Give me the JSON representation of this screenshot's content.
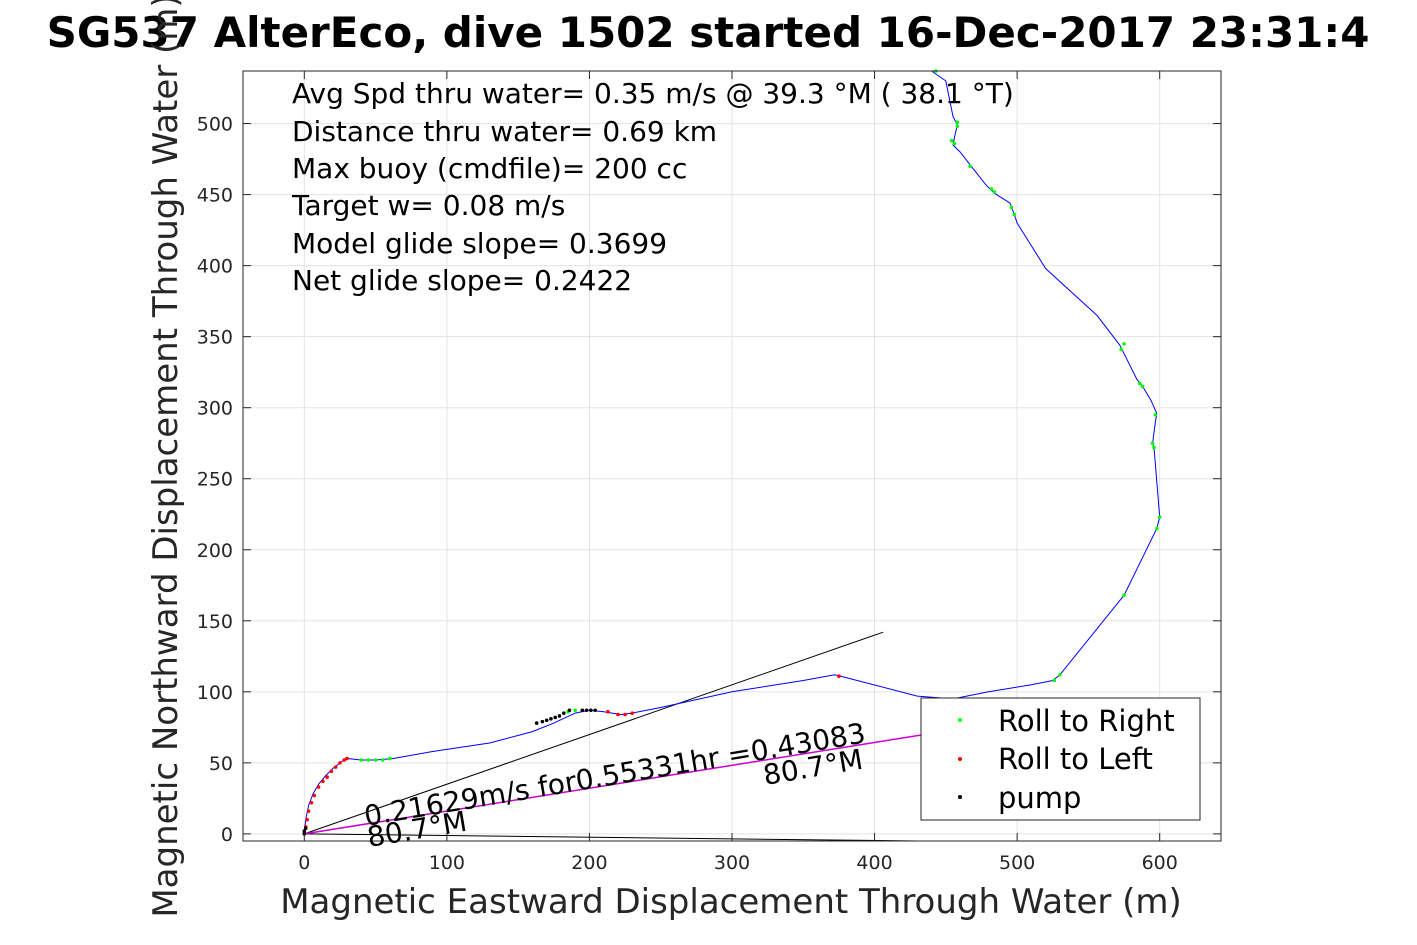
{
  "chart_data": {
    "type": "scatter",
    "title": "SG537 AlterEco, dive 1502 started 16-Dec-2017 23:31:4",
    "xlabel": "Magnetic Eastward Displacement Through Water (m)",
    "ylabel": "Magnetic Northward Displacement Through Water (m)",
    "xlim": [
      -43,
      643
    ],
    "ylim": [
      -5,
      537
    ],
    "xticks": [
      0,
      100,
      200,
      300,
      400,
      500,
      600
    ],
    "yticks": [
      0,
      50,
      100,
      150,
      200,
      250,
      300,
      350,
      400,
      450,
      500
    ],
    "grid": true,
    "annotations": [
      "Avg Spd thru water=  0.35 m/s @  39.3 °M ( 38.1 °T)",
      "Distance thru water=  0.69 km",
      "Max buoy (cmdfile)= 200 cc",
      "Target w= 0.08 m/s",
      "Model glide slope= 0.3699",
      "Net glide slope= 0.2422"
    ],
    "current_label": "0.21629m/s for0.55331hr =0.43083",
    "heading_labels": [
      "80.7°M",
      "80.7°M"
    ],
    "track": [
      [
        0,
        0
      ],
      [
        1,
        10
      ],
      [
        3,
        20
      ],
      [
        6,
        28
      ],
      [
        10,
        35
      ],
      [
        15,
        41
      ],
      [
        20,
        46
      ],
      [
        25,
        50
      ],
      [
        29,
        53
      ],
      [
        31,
        53
      ],
      [
        40,
        52
      ],
      [
        50,
        52
      ],
      [
        62,
        53
      ],
      [
        90,
        58
      ],
      [
        130,
        64
      ],
      [
        160,
        72
      ],
      [
        175,
        78
      ],
      [
        190,
        85
      ],
      [
        200,
        87
      ],
      [
        210,
        86
      ],
      [
        222,
        84
      ],
      [
        230,
        85
      ],
      [
        250,
        89
      ],
      [
        300,
        100
      ],
      [
        350,
        108
      ],
      [
        372,
        112
      ],
      [
        380,
        110
      ],
      [
        430,
        97
      ],
      [
        455,
        95
      ],
      [
        480,
        100
      ],
      [
        510,
        105
      ],
      [
        525,
        108
      ],
      [
        530,
        112
      ],
      [
        575,
        168
      ],
      [
        598,
        215
      ],
      [
        600,
        223
      ],
      [
        596,
        272
      ],
      [
        595,
        275
      ],
      [
        597,
        290
      ],
      [
        598,
        296
      ],
      [
        594,
        305
      ],
      [
        588,
        315
      ],
      [
        584,
        320
      ],
      [
        575,
        338
      ],
      [
        572,
        344
      ],
      [
        556,
        365
      ],
      [
        520,
        398
      ],
      [
        500,
        430
      ],
      [
        498,
        436
      ],
      [
        495,
        444
      ],
      [
        484,
        451
      ],
      [
        478,
        457
      ],
      [
        467,
        471
      ],
      [
        460,
        480
      ],
      [
        455,
        485
      ],
      [
        456,
        490
      ],
      [
        458,
        499
      ],
      [
        455,
        505
      ],
      [
        450,
        530
      ],
      [
        440,
        537
      ]
    ],
    "series": [
      {
        "name": "Roll to Right",
        "color": "#00ff00",
        "points": [
          [
            40,
            52
          ],
          [
            45,
            52
          ],
          [
            50,
            52
          ],
          [
            55,
            52
          ],
          [
            60,
            53
          ],
          [
            185,
            86
          ],
          [
            190,
            87
          ],
          [
            526,
            108
          ],
          [
            530,
            112
          ],
          [
            575,
            168
          ],
          [
            598,
            215
          ],
          [
            600,
            223
          ],
          [
            596,
            272
          ],
          [
            595,
            275
          ],
          [
            597,
            295
          ],
          [
            586,
            317
          ],
          [
            588,
            315
          ],
          [
            573,
            341
          ],
          [
            575,
            345
          ],
          [
            498,
            436
          ],
          [
            496,
            441
          ],
          [
            484,
            452
          ],
          [
            482,
            454
          ],
          [
            467,
            470
          ],
          [
            456,
            486
          ],
          [
            454,
            488
          ],
          [
            458,
            498
          ],
          [
            458,
            501
          ],
          [
            443,
            537
          ]
        ]
      },
      {
        "name": "Roll to Left",
        "color": "#ff0000",
        "points": [
          [
            0,
            1
          ],
          [
            1,
            5
          ],
          [
            2,
            10
          ],
          [
            3,
            16
          ],
          [
            5,
            22
          ],
          [
            7,
            27
          ],
          [
            10,
            33
          ],
          [
            13,
            37
          ],
          [
            16,
            40
          ],
          [
            19,
            44
          ],
          [
            22,
            47
          ],
          [
            25,
            50
          ],
          [
            28,
            52
          ],
          [
            30,
            53
          ],
          [
            213,
            86
          ],
          [
            220,
            84
          ],
          [
            225,
            84
          ],
          [
            230,
            85
          ],
          [
            375,
            111
          ]
        ]
      },
      {
        "name": "pump",
        "color": "#000000",
        "points": [
          [
            0,
            0
          ],
          [
            0,
            2
          ],
          [
            1,
            4
          ],
          [
            163,
            78
          ],
          [
            167,
            79
          ],
          [
            170,
            80
          ],
          [
            173,
            81
          ],
          [
            176,
            82
          ],
          [
            179,
            83
          ],
          [
            182,
            85
          ],
          [
            186,
            87
          ],
          [
            195,
            87
          ],
          [
            198,
            87
          ],
          [
            201,
            87
          ],
          [
            204,
            87
          ]
        ]
      }
    ],
    "legend": {
      "position": "bottom-right",
      "entries": [
        "Roll to Right",
        "Roll to Left",
        "pump"
      ]
    }
  }
}
